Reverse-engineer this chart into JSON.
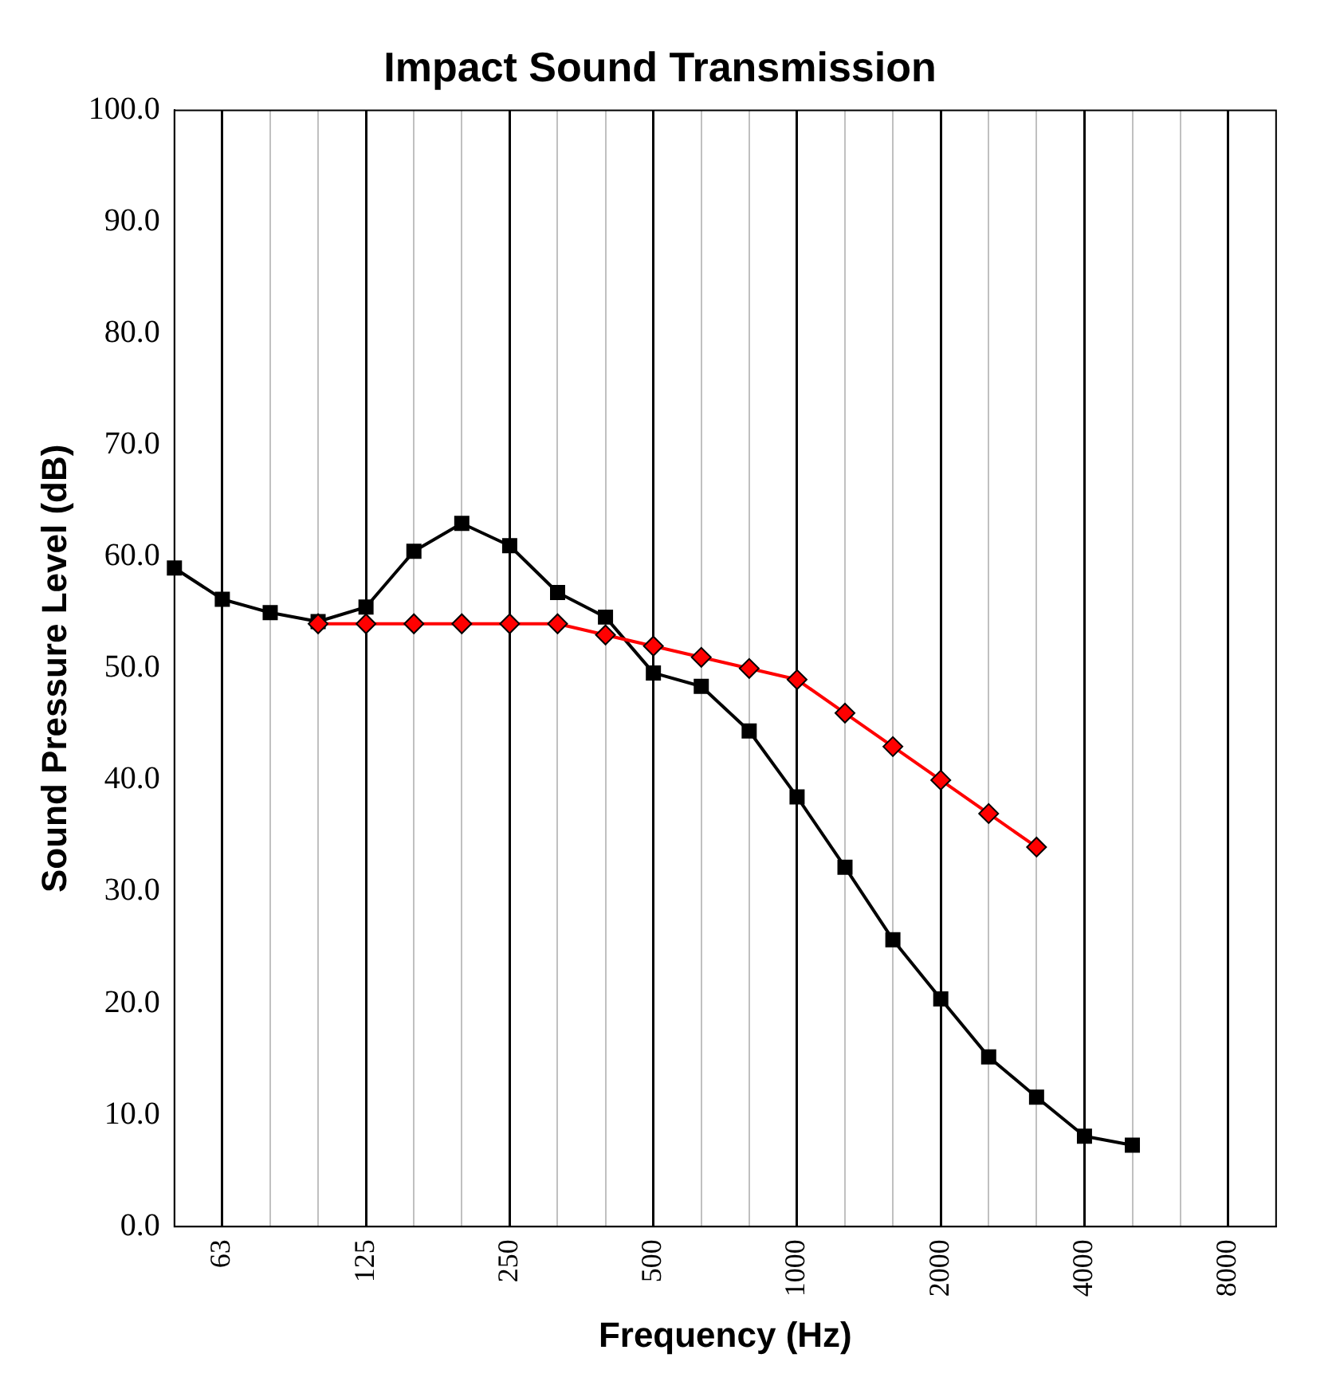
{
  "chart_data": {
    "type": "line",
    "title": "Impact Sound Transmission",
    "xlabel": "Frequency (Hz)",
    "ylabel": "Sound Pressure Level (dB)",
    "categories": [
      null,
      "63",
      null,
      null,
      "125",
      null,
      null,
      "250",
      null,
      null,
      "500",
      null,
      null,
      "1000",
      null,
      null,
      "2000",
      null,
      null,
      "4000",
      null,
      null,
      "8000",
      null
    ],
    "series": [
      {
        "color": "#000000",
        "marker": "square",
        "values": [
          59,
          56.2,
          55,
          54.2,
          55.5,
          60.5,
          63,
          61,
          56.8,
          54.6,
          49.6,
          48.4,
          44.4,
          38.5,
          32.2,
          25.7,
          20.4,
          15.2,
          11.6,
          8.1,
          7.3,
          null,
          null,
          null
        ]
      },
      {
        "color": "#ff0000",
        "marker": "diamond",
        "values": [
          null,
          null,
          null,
          54,
          54,
          54,
          54,
          54,
          54,
          53,
          52,
          51,
          50,
          49,
          46,
          43,
          40,
          37,
          34,
          null,
          null,
          null,
          null,
          null
        ]
      }
    ],
    "ylim": [
      0,
      100
    ],
    "yticks": [
      {
        "value": 0,
        "label": "0.0"
      },
      {
        "value": 10,
        "label": "10.0"
      },
      {
        "value": 20,
        "label": "20.0"
      },
      {
        "value": 30,
        "label": "30.0"
      },
      {
        "value": 40,
        "label": "40.0"
      },
      {
        "value": 50,
        "label": "50.0"
      },
      {
        "value": 60,
        "label": "60.0"
      },
      {
        "value": 70,
        "label": "70.0"
      },
      {
        "value": 80,
        "label": "80.0"
      },
      {
        "value": 90,
        "label": "90.0"
      },
      {
        "value": 100,
        "label": "100.0"
      }
    ],
    "grid": "x",
    "legend": false,
    "line_style": "solid"
  }
}
